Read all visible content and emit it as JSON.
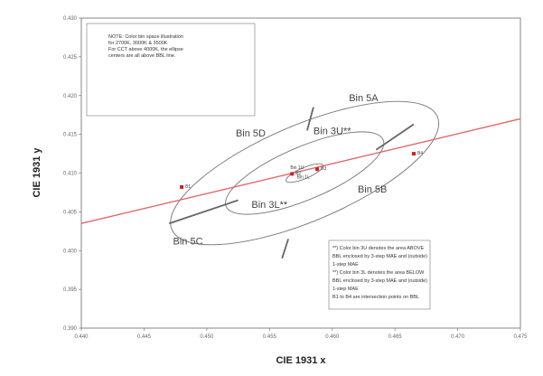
{
  "chart_data": {
    "type": "scatter",
    "title": "",
    "xlabel": "CIE 1931 x",
    "ylabel": "CIE 1931 y",
    "xlim": [
      0.44,
      0.475
    ],
    "ylim": [
      0.39,
      0.43
    ],
    "x_ticks": [
      "0.440",
      "0.445",
      "0.450",
      "0.455",
      "0.460",
      "0.465",
      "0.470",
      "0.475"
    ],
    "y_ticks": [
      "0.430",
      "0.425",
      "0.420",
      "0.415",
      "0.410",
      "0.405",
      "0.400",
      "0.395",
      "0.390"
    ],
    "grid": false,
    "note_lines": [
      "NOTE: Color bin space illustration",
      "for 2700K, 3000K & 3500K",
      "For CCT above 4000K, the ellipse",
      "centers are all above BBL line."
    ],
    "legend_lines": [
      "**) Color bin 3U denotes the area ABOVE",
      "BBL enclosed by 3-step MAE and (outside)",
      "1-step MAE",
      "**) Color bin 3L denotes the area BELOW",
      "BBL enclosed by 3-step MAE and (outside)",
      "1-step MAE",
      "B1 to B4 are intersection points on BBL"
    ],
    "regions": [
      {
        "label": "Bin 5A",
        "x": 0.4625,
        "y": 0.4193
      },
      {
        "label": "Bin 5D",
        "x": 0.4535,
        "y": 0.4147
      },
      {
        "label": "Bin 3U**",
        "x": 0.46,
        "y": 0.415
      },
      {
        "label": "Bin 3L**",
        "x": 0.455,
        "y": 0.4055
      },
      {
        "label": "Bin 5B",
        "x": 0.4632,
        "y": 0.4075
      },
      {
        "label": "Bin 5C",
        "x": 0.4485,
        "y": 0.4008
      }
    ],
    "center_labels": [
      {
        "label": "Bin 1U",
        "x": 0.4572,
        "y": 0.4105
      },
      {
        "label": "Bin 1L",
        "x": 0.4577,
        "y": 0.4093
      }
    ],
    "ellipse": {
      "center": [
        0.4578,
        0.41
      ],
      "angle_deg": 23,
      "rings": [
        {
          "name": "1-step",
          "a": 0.0016,
          "b": 0.0007
        },
        {
          "name": "3-step",
          "a": 0.0068,
          "b": 0.0034
        },
        {
          "name": "5-step",
          "a": 0.0115,
          "b": 0.0062
        }
      ]
    },
    "bbl_line": {
      "color": "#e06666",
      "x": [
        0.44,
        0.475
      ],
      "y": [
        0.4035,
        0.417
      ]
    },
    "dividers": [
      {
        "from": [
          0.458,
          0.4155
        ],
        "to": [
          0.4585,
          0.4185
        ]
      },
      {
        "from": [
          0.4635,
          0.413
        ],
        "to": [
          0.4665,
          0.4163
        ]
      },
      {
        "from": [
          0.4525,
          0.4065
        ],
        "to": [
          0.447,
          0.4035
        ]
      },
      {
        "from": [
          0.4565,
          0.4015
        ],
        "to": [
          0.456,
          0.399
        ]
      }
    ],
    "intersection_points": [
      {
        "label": "B1",
        "x": 0.448,
        "y": 0.4082
      },
      {
        "label": "B2",
        "x": 0.4568,
        "y": 0.4099
      },
      {
        "label": "B3",
        "x": 0.4588,
        "y": 0.4105
      },
      {
        "label": "B4",
        "x": 0.4665,
        "y": 0.4125
      }
    ],
    "point_color": "#cc2222"
  }
}
